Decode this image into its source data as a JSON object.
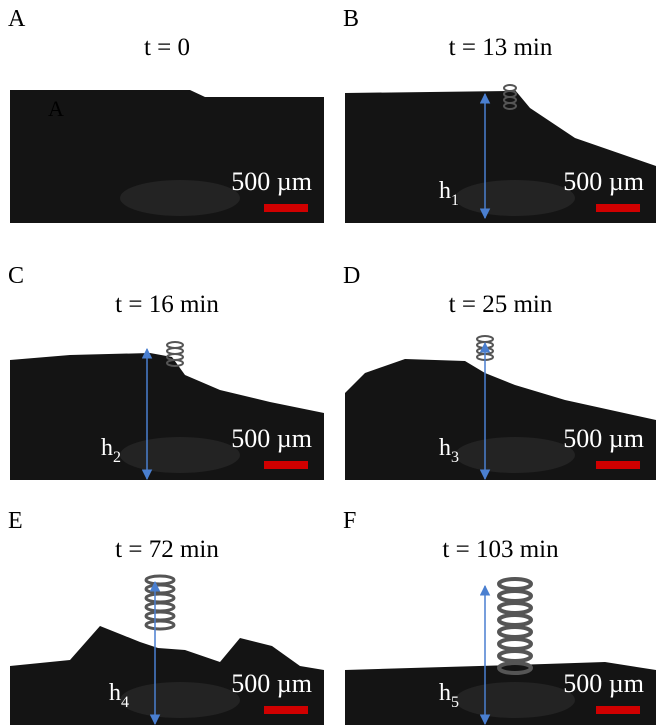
{
  "panels": [
    {
      "label": "A",
      "title": "t = 0",
      "scale_bar": "500 µm",
      "inset_label": "A"
    },
    {
      "label": "B",
      "title": "t = 13 min",
      "scale_bar": "500 µm",
      "height": {
        "symbol": "h",
        "subscript": "1"
      }
    },
    {
      "label": "C",
      "title": "t = 16 min",
      "scale_bar": "500 µm",
      "height": {
        "symbol": "h",
        "subscript": "2"
      }
    },
    {
      "label": "D",
      "title": "t = 25 min",
      "scale_bar": "500 µm",
      "height": {
        "symbol": "h",
        "subscript": "3"
      }
    },
    {
      "label": "E",
      "title": "t = 72 min",
      "scale_bar": "500 µm",
      "height": {
        "symbol": "h",
        "subscript": "4"
      }
    },
    {
      "label": "F",
      "title": "t = 103 min",
      "scale_bar": "500 µm",
      "height": {
        "symbol": "h",
        "subscript": "5"
      }
    }
  ]
}
